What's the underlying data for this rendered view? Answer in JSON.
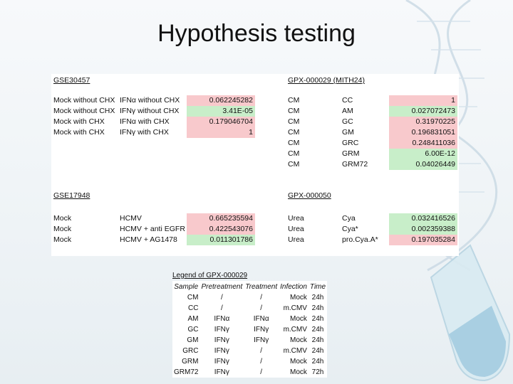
{
  "title": "Hypothesis testing",
  "gse30457": {
    "label": "GSE30457",
    "rows": [
      {
        "a": "Mock without CHX",
        "b": "IFNα without CHX",
        "v": "0.062245282",
        "color": "pink"
      },
      {
        "a": "Mock without CHX",
        "b": "IFNγ without CHX",
        "v": "3.41E-05",
        "color": "green"
      },
      {
        "a": "Mock with CHX",
        "b": "IFNα with CHX",
        "v": "0.179046704",
        "color": "pink"
      },
      {
        "a": "Mock with CHX",
        "b": "IFNγ with CHX",
        "v": "1",
        "color": "pink"
      }
    ]
  },
  "gpx29": {
    "label": "GPX-000029 (MITH24)",
    "rows": [
      {
        "a": "CM",
        "b": "CC",
        "v": "1",
        "color": "pink"
      },
      {
        "a": "CM",
        "b": "AM",
        "v": "0.027072473",
        "color": "green"
      },
      {
        "a": "CM",
        "b": "GC",
        "v": "0.31970225",
        "color": "pink"
      },
      {
        "a": "CM",
        "b": "GM",
        "v": "0.196831051",
        "color": "pink"
      },
      {
        "a": "CM",
        "b": "GRC",
        "v": "0.248411036",
        "color": "pink"
      },
      {
        "a": "CM",
        "b": "GRM",
        "v": "6.00E-12",
        "color": "green"
      },
      {
        "a": "CM",
        "b": "GRM72",
        "v": "0.04026449",
        "color": "green"
      }
    ]
  },
  "gse17948": {
    "label": "GSE17948",
    "rows": [
      {
        "a": "Mock",
        "b": "HCMV",
        "v": "0.665235594",
        "color": "pink"
      },
      {
        "a": "Mock",
        "b": "HCMV + anti EGFR",
        "v": "0.422543076",
        "color": "pink"
      },
      {
        "a": "Mock",
        "b": "HCMV + AG1478",
        "v": "0.011301786",
        "color": "green"
      }
    ]
  },
  "gpx50": {
    "label": "GPX-000050",
    "rows": [
      {
        "a": "Urea",
        "b": "Cya",
        "v": "0.032416526",
        "color": "green"
      },
      {
        "a": "Urea",
        "b": "Cya*",
        "v": "0.002359388",
        "color": "green"
      },
      {
        "a": "Urea",
        "b": "pro.Cya.A*",
        "v": "0.197035284",
        "color": "pink"
      }
    ]
  },
  "legend": {
    "title": "Legend of GPX-000029",
    "headers": [
      "Sample",
      "Pretreatment",
      "Treatment",
      "Infection",
      "Time"
    ],
    "rows": [
      [
        "CM",
        "/",
        "/",
        "Mock",
        "24h"
      ],
      [
        "CC",
        "/",
        "/",
        "m.CMV",
        "24h"
      ],
      [
        "AM",
        "IFNα",
        "IFNα",
        "Mock",
        "24h"
      ],
      [
        "GC",
        "IFNγ",
        "IFNγ",
        "m.CMV",
        "24h"
      ],
      [
        "GM",
        "IFNγ",
        "IFNγ",
        "Mock",
        "24h"
      ],
      [
        "GRC",
        "IFNγ",
        "/",
        "m.CMV",
        "24h"
      ],
      [
        "GRM",
        "IFNγ",
        "/",
        "Mock",
        "24h"
      ],
      [
        "GRM72",
        "IFNγ",
        "/",
        "Mock",
        "72h"
      ]
    ]
  }
}
